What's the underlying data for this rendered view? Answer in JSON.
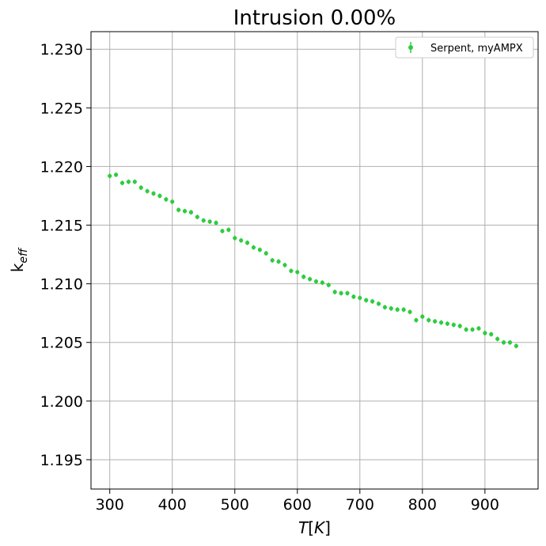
{
  "chart_data": {
    "type": "scatter",
    "title": "Intrusion  0.00%",
    "xlabel": "T[K]",
    "ylabel": "k_eff",
    "xlim": [
      270,
      985
    ],
    "ylim": [
      1.1925,
      1.2315
    ],
    "xticks": [
      300,
      400,
      500,
      600,
      700,
      800,
      900
    ],
    "yticks": [
      1.195,
      1.2,
      1.205,
      1.21,
      1.215,
      1.22,
      1.225,
      1.23
    ],
    "xtick_labels": [
      "300",
      "400",
      "500",
      "600",
      "700",
      "800",
      "900"
    ],
    "ytick_labels": [
      "1.195",
      "1.200",
      "1.205",
      "1.210",
      "1.215",
      "1.220",
      "1.225",
      "1.230"
    ],
    "grid": true,
    "legend_position": "top-right",
    "series": [
      {
        "name": "Serpent, myAMPX",
        "color": "#2ecc40",
        "marker": "circle-with-errorbar",
        "x": [
          300,
          310,
          320,
          330,
          340,
          350,
          360,
          370,
          380,
          390,
          400,
          410,
          420,
          430,
          440,
          450,
          460,
          470,
          480,
          490,
          500,
          510,
          520,
          530,
          540,
          550,
          560,
          570,
          580,
          590,
          600,
          610,
          620,
          630,
          640,
          650,
          660,
          670,
          680,
          690,
          700,
          710,
          720,
          730,
          740,
          750,
          760,
          770,
          780,
          790,
          800,
          810,
          820,
          830,
          840,
          850,
          860,
          870,
          880,
          890,
          900,
          910,
          920,
          930,
          940,
          950
        ],
        "y": [
          1.2192,
          1.2193,
          1.2186,
          1.2187,
          1.2187,
          1.2182,
          1.2179,
          1.2177,
          1.2175,
          1.2172,
          1.217,
          1.2163,
          1.2162,
          1.2161,
          1.2157,
          1.2154,
          1.2153,
          1.2152,
          1.2145,
          1.2146,
          1.2139,
          1.2137,
          1.2135,
          1.2131,
          1.2129,
          1.2126,
          1.212,
          1.2119,
          1.2116,
          1.2111,
          1.211,
          1.2106,
          1.2104,
          1.2102,
          1.2101,
          1.2099,
          1.2093,
          1.2092,
          1.2092,
          1.2089,
          1.2088,
          1.2086,
          1.2085,
          1.2083,
          1.208,
          1.2079,
          1.2078,
          1.2078,
          1.2076,
          1.2069,
          1.2072,
          1.2069,
          1.2068,
          1.2067,
          1.2066,
          1.2065,
          1.2064,
          1.2061,
          1.2061,
          1.2062,
          1.2058,
          1.2057,
          1.2053,
          1.205,
          1.205,
          1.2047
        ]
      }
    ]
  }
}
